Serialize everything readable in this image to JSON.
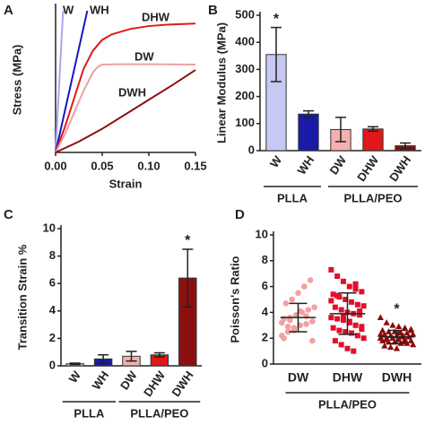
{
  "chart_data": [
    {
      "type": "line",
      "panel_label": "A",
      "xlabel": "Strain",
      "ylabel": "Stress (MPa)",
      "xlim": [
        0,
        0.15
      ],
      "ylim": [
        0,
        4
      ],
      "xticks": [
        {
          "value": 0,
          "label": "0.00"
        },
        {
          "value": 0.05,
          "label": "0.05"
        },
        {
          "value": 0.1,
          "label": "0.10"
        },
        {
          "value": 0.15,
          "label": "0.15"
        }
      ],
      "series": [
        {
          "name": "W",
          "color": "#a8a8ee",
          "x": [
            0,
            0.008
          ],
          "values": [
            0,
            3.9
          ]
        },
        {
          "name": "WH",
          "color": "#1515c8",
          "x": [
            0,
            0.034
          ],
          "values": [
            0,
            3.9
          ]
        },
        {
          "name": "DHW",
          "color": "#e01818",
          "x": [
            0,
            0.01,
            0.02,
            0.03,
            0.04,
            0.05,
            0.06,
            0.08,
            0.1,
            0.12,
            0.15
          ],
          "values": [
            0,
            0.7,
            1.5,
            2.3,
            2.8,
            3.1,
            3.25,
            3.4,
            3.48,
            3.52,
            3.55
          ]
        },
        {
          "name": "DW",
          "color": "#f0a0a0",
          "x": [
            0,
            0.01,
            0.02,
            0.03,
            0.04,
            0.045,
            0.05,
            0.07,
            0.1,
            0.15
          ],
          "values": [
            0,
            0.5,
            1.1,
            1.7,
            2.2,
            2.35,
            2.42,
            2.43,
            2.43,
            2.42
          ]
        },
        {
          "name": "DWH",
          "color": "#8b1010",
          "x": [
            0,
            0.025,
            0.05,
            0.075,
            0.1,
            0.125,
            0.15
          ],
          "values": [
            0,
            0.3,
            0.65,
            1.05,
            1.45,
            1.85,
            2.27
          ]
        }
      ]
    },
    {
      "type": "bar",
      "panel_label": "B",
      "ylabel": "Linear Modulus (MPa)",
      "ylim": [
        0,
        500
      ],
      "yticks": [
        0,
        100,
        200,
        300,
        400,
        500
      ],
      "categories": [
        "W",
        "WH",
        "DW",
        "DHW",
        "DWH"
      ],
      "values": [
        355,
        135,
        78,
        80,
        18
      ],
      "errors": [
        100,
        12,
        45,
        8,
        10
      ],
      "colors": [
        "#c8c8f4",
        "#1a1aa8",
        "#f4b0b0",
        "#e01818",
        "#8b1010"
      ],
      "annotations": [
        {
          "text": "*",
          "category": "W"
        }
      ],
      "groups": [
        {
          "label": "PLLA",
          "categories": [
            "W",
            "WH"
          ]
        },
        {
          "label": "PLLA/PEO",
          "categories": [
            "DW",
            "DHW",
            "DWH"
          ]
        }
      ]
    },
    {
      "type": "bar",
      "panel_label": "C",
      "ylabel": "Transition Strain %",
      "ylim": [
        0,
        10
      ],
      "yticks": [
        0,
        2,
        4,
        6,
        8,
        10
      ],
      "categories": [
        "W",
        "WH",
        "DW",
        "DHW",
        "DWH"
      ],
      "values": [
        0.15,
        0.5,
        0.7,
        0.8,
        6.4
      ],
      "errors": [
        0.05,
        0.3,
        0.35,
        0.15,
        2.1
      ],
      "colors": [
        "#c8c8f4",
        "#1a1aa8",
        "#f4b0b0",
        "#e01818",
        "#8b1010"
      ],
      "annotations": [
        {
          "text": "*",
          "category": "DWH"
        }
      ],
      "groups": [
        {
          "label": "PLLA",
          "categories": [
            "W",
            "WH"
          ]
        },
        {
          "label": "PLLA/PEO",
          "categories": [
            "DW",
            "DHW",
            "DWH"
          ]
        }
      ]
    },
    {
      "type": "scatter",
      "panel_label": "D",
      "ylabel": "Poisson's Ratio",
      "ylim": [
        0,
        10
      ],
      "yticks": [
        0,
        2,
        4,
        6,
        8,
        10
      ],
      "categories": [
        "DW",
        "DHW",
        "DWH"
      ],
      "colors": [
        "#f4a0a0",
        "#e0102a",
        "#8b0a0a"
      ],
      "markers": [
        "circle",
        "square",
        "triangle"
      ],
      "points": [
        [
          2.2,
          2.5,
          2.8,
          3.0,
          3.1,
          3.3,
          3.5,
          3.6,
          3.8,
          4.0,
          4.2,
          4.4,
          4.7,
          5.0,
          5.5,
          6.0,
          6.5,
          3.2,
          2.9,
          2.6,
          4.1,
          3.7,
          1.8,
          2.0,
          3.4
        ],
        [
          7.3,
          6.8,
          6.4,
          6.0,
          5.8,
          5.6,
          5.4,
          5.2,
          5.0,
          4.8,
          4.6,
          4.5,
          4.4,
          4.2,
          4.0,
          3.9,
          3.8,
          3.6,
          3.5,
          3.4,
          3.2,
          3.0,
          2.9,
          2.8,
          2.6,
          2.5,
          2.4,
          2.2,
          2.0,
          1.8,
          1.5,
          1.2,
          1.0,
          4.1,
          4.9,
          5.3,
          3.7,
          3.3,
          6.2,
          2.7
        ],
        [
          3.6,
          3.2,
          3.0,
          2.9,
          2.8,
          2.7,
          2.6,
          2.5,
          2.5,
          2.4,
          2.4,
          2.3,
          2.3,
          2.2,
          2.2,
          2.1,
          2.1,
          2.0,
          2.0,
          2.0,
          1.9,
          1.9,
          1.8,
          1.8,
          1.7,
          1.7,
          1.6,
          1.6,
          1.5,
          1.4,
          1.3,
          1.2,
          2.2,
          2.1,
          2.3,
          1.9,
          2.0,
          2.4,
          1.8,
          2.6
        ]
      ],
      "means": [
        3.6,
        3.9,
        2.1
      ],
      "sds": [
        1.1,
        1.6,
        0.5
      ],
      "annotations": [
        {
          "text": "*",
          "category": "DWH"
        }
      ],
      "groups": [
        {
          "label": "PLLA/PEO",
          "categories": [
            "DW",
            "DHW",
            "DWH"
          ]
        }
      ]
    }
  ]
}
